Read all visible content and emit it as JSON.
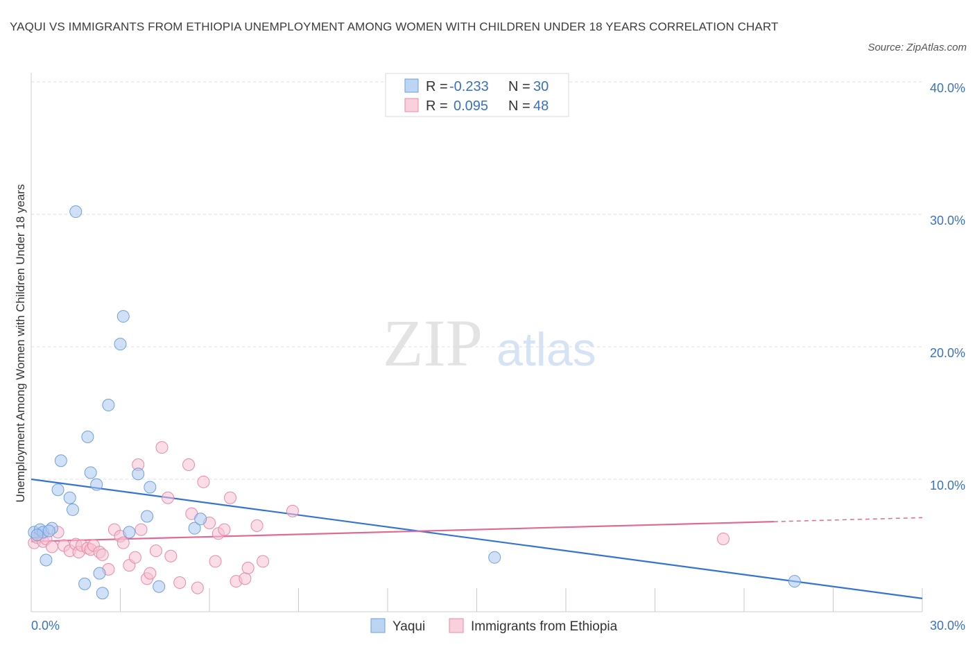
{
  "title": "YAQUI VS IMMIGRANTS FROM ETHIOPIA UNEMPLOYMENT AMONG WOMEN WITH CHILDREN UNDER 18 YEARS CORRELATION CHART",
  "source": "Source: ZipAtlas.com",
  "watermark": {
    "zip": "ZIP",
    "atlas": "atlas"
  },
  "chart_data": {
    "type": "scatter",
    "title": "YAQUI VS IMMIGRANTS FROM ETHIOPIA UNEMPLOYMENT AMONG WOMEN WITH CHILDREN UNDER 18 YEARS CORRELATION CHART",
    "xlabel": "",
    "ylabel": "Unemployment Among Women with Children Under 18 years",
    "xlim": [
      0,
      30
    ],
    "ylim": [
      0,
      40
    ],
    "x_tick_labels": [
      "0.0%",
      "30.0%"
    ],
    "y_ticks": [
      10,
      20,
      30,
      40
    ],
    "y_tick_labels": [
      "10.0%",
      "20.0%",
      "30.0%",
      "40.0%"
    ],
    "grid": "horizontal-dashed",
    "legend_placement": "top-center",
    "series": [
      {
        "name": "Yaqui",
        "color": "#a9c8f0",
        "stroke": "#6f9fdc",
        "line_color": "#3474d0",
        "r_label": "R =",
        "r_value": "-0.233",
        "n_label": "N =",
        "n_value": "30",
        "trend": {
          "x": [
            0,
            30
          ],
          "y": [
            10.0,
            1.0
          ]
        },
        "points": [
          [
            0.1,
            6.0
          ],
          [
            0.3,
            6.2
          ],
          [
            0.4,
            6.0
          ],
          [
            0.5,
            3.9
          ],
          [
            0.7,
            6.3
          ],
          [
            0.9,
            9.2
          ],
          [
            1.0,
            11.4
          ],
          [
            1.3,
            8.6
          ],
          [
            1.4,
            7.7
          ],
          [
            1.5,
            30.2
          ],
          [
            1.8,
            2.1
          ],
          [
            1.9,
            13.2
          ],
          [
            2.0,
            10.5
          ],
          [
            2.2,
            9.6
          ],
          [
            2.3,
            2.9
          ],
          [
            2.4,
            1.4
          ],
          [
            2.6,
            15.6
          ],
          [
            3.0,
            20.2
          ],
          [
            3.1,
            22.3
          ],
          [
            3.3,
            6.0
          ],
          [
            3.6,
            10.4
          ],
          [
            3.9,
            7.2
          ],
          [
            4.0,
            9.4
          ],
          [
            4.3,
            1.9
          ],
          [
            5.5,
            6.3
          ],
          [
            5.7,
            7.0
          ],
          [
            15.6,
            4.1
          ],
          [
            25.7,
            2.3
          ],
          [
            0.2,
            5.8
          ],
          [
            0.6,
            6.1
          ]
        ]
      },
      {
        "name": "Immigrants from Ethiopia",
        "color": "#f6c1d1",
        "stroke": "#e88aa8",
        "line_color": "#e06a93",
        "r_label": "R =",
        "r_value": "0.095",
        "n_label": "N =",
        "n_value": "48",
        "trend": {
          "x": [
            0,
            25
          ],
          "y": [
            5.3,
            6.8
          ]
        },
        "trend_dashed": {
          "x": [
            25,
            30
          ],
          "y": [
            6.8,
            7.1
          ]
        },
        "points": [
          [
            0.1,
            5.2
          ],
          [
            0.2,
            5.6
          ],
          [
            0.3,
            5.8
          ],
          [
            0.4,
            5.3
          ],
          [
            0.5,
            5.5
          ],
          [
            0.7,
            4.9
          ],
          [
            0.9,
            6.0
          ],
          [
            1.1,
            5.0
          ],
          [
            1.3,
            4.6
          ],
          [
            1.5,
            5.1
          ],
          [
            1.6,
            4.5
          ],
          [
            1.7,
            5.0
          ],
          [
            1.9,
            4.8
          ],
          [
            2.0,
            4.7
          ],
          [
            2.1,
            5.0
          ],
          [
            2.3,
            4.5
          ],
          [
            2.4,
            4.3
          ],
          [
            2.6,
            3.2
          ],
          [
            2.8,
            6.2
          ],
          [
            3.0,
            5.7
          ],
          [
            3.1,
            5.2
          ],
          [
            3.3,
            3.5
          ],
          [
            3.5,
            4.1
          ],
          [
            3.6,
            11.1
          ],
          [
            3.7,
            6.2
          ],
          [
            3.9,
            2.5
          ],
          [
            4.0,
            2.9
          ],
          [
            4.2,
            4.6
          ],
          [
            4.4,
            12.4
          ],
          [
            4.6,
            8.6
          ],
          [
            4.7,
            4.2
          ],
          [
            5.0,
            2.2
          ],
          [
            5.3,
            11.1
          ],
          [
            5.4,
            7.4
          ],
          [
            5.6,
            1.8
          ],
          [
            5.8,
            9.8
          ],
          [
            6.0,
            6.7
          ],
          [
            6.2,
            3.8
          ],
          [
            6.3,
            5.9
          ],
          [
            6.5,
            6.2
          ],
          [
            6.7,
            8.6
          ],
          [
            6.9,
            2.3
          ],
          [
            7.2,
            2.5
          ],
          [
            7.3,
            3.3
          ],
          [
            7.6,
            6.5
          ],
          [
            7.8,
            3.8
          ],
          [
            8.8,
            7.6
          ],
          [
            23.3,
            5.5
          ]
        ]
      }
    ]
  },
  "bottom_legend": [
    {
      "name": "Yaqui"
    },
    {
      "name": "Immigrants from Ethiopia"
    }
  ]
}
